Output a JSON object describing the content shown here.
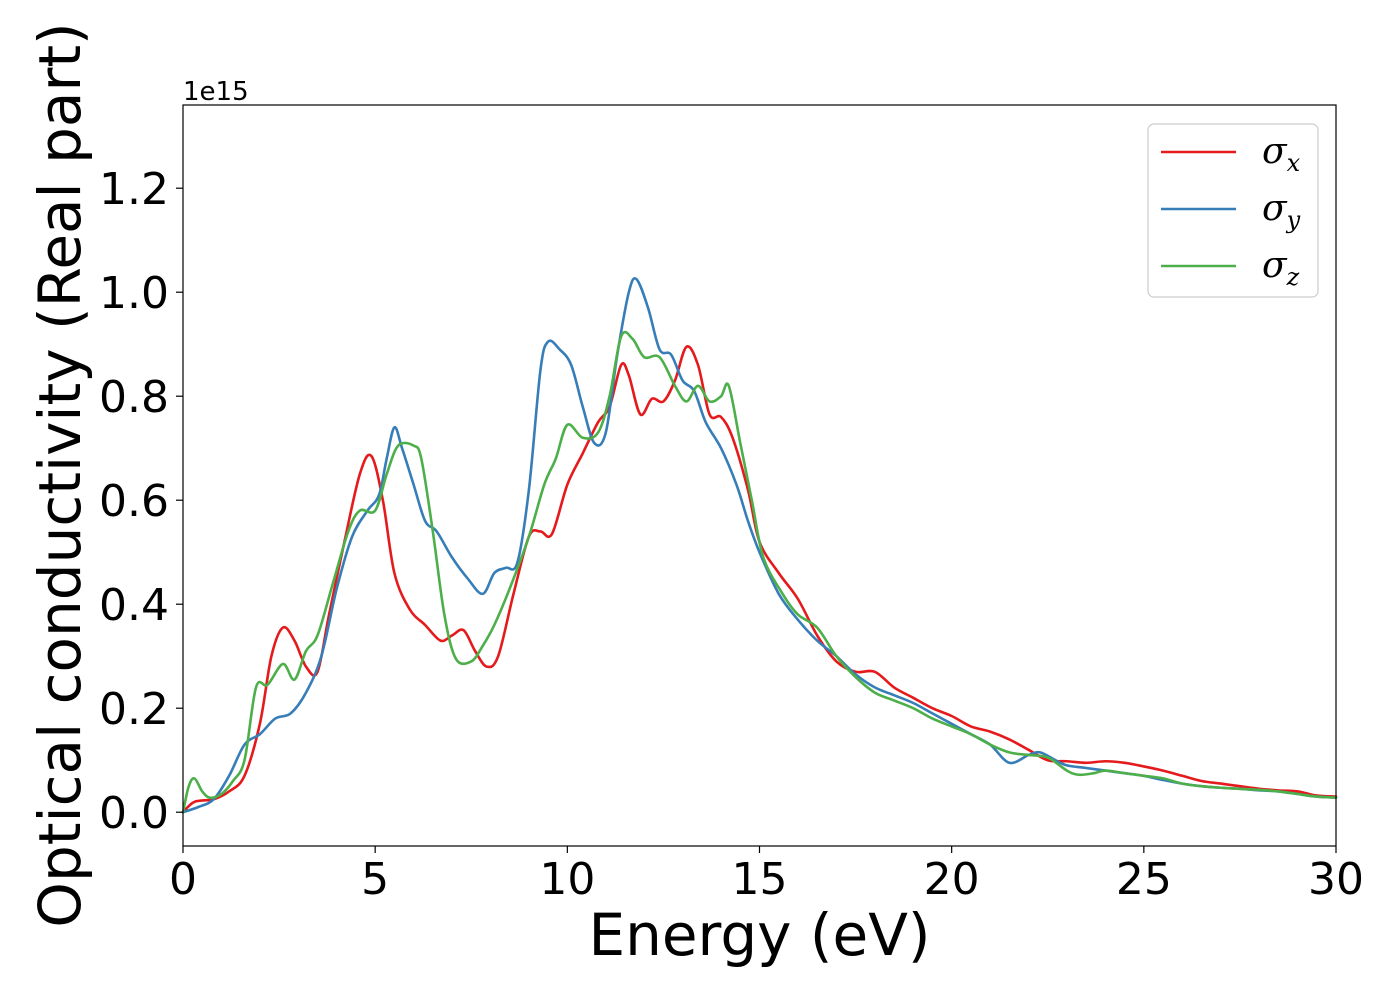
{
  "chart_data": {
    "type": "line",
    "title": "",
    "xlabel": "Energy (eV)",
    "ylabel": "Optical conductivity (Real part)",
    "y_offset_label": "1e15",
    "xlim": [
      0,
      30
    ],
    "ylim": [
      -0.065,
      1.36
    ],
    "x_ticks": [
      0,
      5,
      10,
      15,
      20,
      25,
      30
    ],
    "x_tick_labels": [
      "0",
      "5",
      "10",
      "15",
      "20",
      "25",
      "30"
    ],
    "y_ticks": [
      0.0,
      0.2,
      0.4,
      0.6,
      0.8,
      1.0,
      1.2
    ],
    "y_tick_labels": [
      "0.0",
      "0.2",
      "0.4",
      "0.6",
      "0.8",
      "1.0",
      "1.2"
    ],
    "grid": false,
    "legend_position": "top-right",
    "series": [
      {
        "name": "σx",
        "legend_symbol": "σ",
        "legend_subscript": "x",
        "color": "#e41a1c",
        "points": [
          [
            0,
            0
          ],
          [
            0.3,
            0.02
          ],
          [
            0.8,
            0.025
          ],
          [
            1.2,
            0.04
          ],
          [
            1.6,
            0.07
          ],
          [
            2.0,
            0.17
          ],
          [
            2.3,
            0.3
          ],
          [
            2.6,
            0.355
          ],
          [
            2.9,
            0.33
          ],
          [
            3.2,
            0.28
          ],
          [
            3.5,
            0.27
          ],
          [
            3.8,
            0.38
          ],
          [
            4.2,
            0.52
          ],
          [
            4.6,
            0.65
          ],
          [
            4.9,
            0.685
          ],
          [
            5.2,
            0.6
          ],
          [
            5.5,
            0.46
          ],
          [
            5.9,
            0.39
          ],
          [
            6.3,
            0.36
          ],
          [
            6.7,
            0.33
          ],
          [
            7.0,
            0.34
          ],
          [
            7.3,
            0.35
          ],
          [
            7.6,
            0.31
          ],
          [
            7.9,
            0.28
          ],
          [
            8.2,
            0.3
          ],
          [
            8.6,
            0.42
          ],
          [
            9.0,
            0.53
          ],
          [
            9.3,
            0.54
          ],
          [
            9.6,
            0.535
          ],
          [
            10.0,
            0.63
          ],
          [
            10.4,
            0.69
          ],
          [
            10.8,
            0.75
          ],
          [
            11.1,
            0.78
          ],
          [
            11.4,
            0.86
          ],
          [
            11.6,
            0.84
          ],
          [
            11.9,
            0.765
          ],
          [
            12.2,
            0.795
          ],
          [
            12.5,
            0.79
          ],
          [
            12.8,
            0.83
          ],
          [
            13.1,
            0.895
          ],
          [
            13.4,
            0.86
          ],
          [
            13.7,
            0.765
          ],
          [
            14.0,
            0.76
          ],
          [
            14.3,
            0.72
          ],
          [
            14.7,
            0.62
          ],
          [
            15.0,
            0.52
          ],
          [
            15.5,
            0.46
          ],
          [
            16.0,
            0.41
          ],
          [
            16.5,
            0.34
          ],
          [
            17.0,
            0.29
          ],
          [
            17.5,
            0.27
          ],
          [
            18.0,
            0.27
          ],
          [
            18.5,
            0.24
          ],
          [
            19.0,
            0.22
          ],
          [
            19.5,
            0.2
          ],
          [
            20.0,
            0.185
          ],
          [
            20.5,
            0.165
          ],
          [
            21.0,
            0.155
          ],
          [
            21.5,
            0.14
          ],
          [
            22.0,
            0.12
          ],
          [
            22.5,
            0.1
          ],
          [
            23.0,
            0.098
          ],
          [
            23.5,
            0.095
          ],
          [
            24.0,
            0.098
          ],
          [
            24.5,
            0.095
          ],
          [
            25.0,
            0.088
          ],
          [
            25.5,
            0.08
          ],
          [
            26.0,
            0.07
          ],
          [
            26.5,
            0.06
          ],
          [
            27.0,
            0.055
          ],
          [
            27.5,
            0.05
          ],
          [
            28.0,
            0.045
          ],
          [
            28.5,
            0.042
          ],
          [
            29.0,
            0.04
          ],
          [
            29.5,
            0.032
          ],
          [
            30.0,
            0.03
          ]
        ]
      },
      {
        "name": "σy",
        "legend_symbol": "σ",
        "legend_subscript": "y",
        "color": "#377eb8",
        "points": [
          [
            0,
            0
          ],
          [
            0.4,
            0.01
          ],
          [
            0.8,
            0.025
          ],
          [
            1.2,
            0.07
          ],
          [
            1.6,
            0.13
          ],
          [
            2.0,
            0.15
          ],
          [
            2.4,
            0.18
          ],
          [
            2.8,
            0.19
          ],
          [
            3.2,
            0.23
          ],
          [
            3.6,
            0.3
          ],
          [
            4.0,
            0.43
          ],
          [
            4.4,
            0.53
          ],
          [
            4.8,
            0.58
          ],
          [
            5.1,
            0.61
          ],
          [
            5.3,
            0.68
          ],
          [
            5.5,
            0.74
          ],
          [
            5.7,
            0.7
          ],
          [
            6.0,
            0.63
          ],
          [
            6.3,
            0.56
          ],
          [
            6.6,
            0.54
          ],
          [
            7.0,
            0.49
          ],
          [
            7.4,
            0.45
          ],
          [
            7.8,
            0.42
          ],
          [
            8.1,
            0.46
          ],
          [
            8.4,
            0.47
          ],
          [
            8.7,
            0.48
          ],
          [
            9.0,
            0.62
          ],
          [
            9.3,
            0.85
          ],
          [
            9.5,
            0.905
          ],
          [
            9.8,
            0.89
          ],
          [
            10.1,
            0.86
          ],
          [
            10.4,
            0.78
          ],
          [
            10.7,
            0.71
          ],
          [
            11.0,
            0.73
          ],
          [
            11.3,
            0.88
          ],
          [
            11.6,
            1.0
          ],
          [
            11.8,
            1.025
          ],
          [
            12.1,
            0.97
          ],
          [
            12.4,
            0.89
          ],
          [
            12.7,
            0.88
          ],
          [
            13.0,
            0.83
          ],
          [
            13.3,
            0.81
          ],
          [
            13.6,
            0.75
          ],
          [
            14.0,
            0.7
          ],
          [
            14.4,
            0.63
          ],
          [
            14.7,
            0.56
          ],
          [
            15.0,
            0.5
          ],
          [
            15.5,
            0.42
          ],
          [
            16.0,
            0.37
          ],
          [
            16.5,
            0.33
          ],
          [
            17.0,
            0.3
          ],
          [
            17.5,
            0.265
          ],
          [
            18.0,
            0.24
          ],
          [
            18.5,
            0.225
          ],
          [
            19.0,
            0.21
          ],
          [
            19.5,
            0.19
          ],
          [
            20.0,
            0.17
          ],
          [
            20.5,
            0.15
          ],
          [
            21.0,
            0.13
          ],
          [
            21.5,
            0.095
          ],
          [
            22.0,
            0.11
          ],
          [
            22.3,
            0.115
          ],
          [
            22.7,
            0.1
          ],
          [
            23.0,
            0.09
          ],
          [
            23.5,
            0.085
          ],
          [
            24.0,
            0.08
          ],
          [
            24.5,
            0.075
          ],
          [
            25.0,
            0.07
          ],
          [
            25.5,
            0.062
          ],
          [
            26.0,
            0.055
          ],
          [
            26.5,
            0.05
          ],
          [
            27.0,
            0.047
          ],
          [
            27.5,
            0.045
          ],
          [
            28.0,
            0.042
          ],
          [
            28.5,
            0.04
          ],
          [
            29.0,
            0.035
          ],
          [
            29.5,
            0.03
          ],
          [
            30.0,
            0.028
          ]
        ]
      },
      {
        "name": "σz",
        "legend_symbol": "σ",
        "legend_subscript": "z",
        "color": "#4daf4a",
        "points": [
          [
            0,
            0
          ],
          [
            0.15,
            0.05
          ],
          [
            0.3,
            0.065
          ],
          [
            0.5,
            0.04
          ],
          [
            0.7,
            0.028
          ],
          [
            1.0,
            0.035
          ],
          [
            1.3,
            0.06
          ],
          [
            1.6,
            0.1
          ],
          [
            1.9,
            0.24
          ],
          [
            2.2,
            0.245
          ],
          [
            2.6,
            0.285
          ],
          [
            2.9,
            0.255
          ],
          [
            3.2,
            0.31
          ],
          [
            3.5,
            0.34
          ],
          [
            3.9,
            0.44
          ],
          [
            4.3,
            0.54
          ],
          [
            4.6,
            0.58
          ],
          [
            5.0,
            0.58
          ],
          [
            5.3,
            0.65
          ],
          [
            5.6,
            0.705
          ],
          [
            6.0,
            0.705
          ],
          [
            6.2,
            0.68
          ],
          [
            6.5,
            0.54
          ],
          [
            6.8,
            0.38
          ],
          [
            7.1,
            0.295
          ],
          [
            7.5,
            0.29
          ],
          [
            7.8,
            0.32
          ],
          [
            8.1,
            0.36
          ],
          [
            8.5,
            0.43
          ],
          [
            9.0,
            0.53
          ],
          [
            9.4,
            0.63
          ],
          [
            9.7,
            0.68
          ],
          [
            10.0,
            0.745
          ],
          [
            10.4,
            0.72
          ],
          [
            10.8,
            0.73
          ],
          [
            11.1,
            0.8
          ],
          [
            11.4,
            0.915
          ],
          [
            11.7,
            0.91
          ],
          [
            12.0,
            0.875
          ],
          [
            12.4,
            0.875
          ],
          [
            12.8,
            0.82
          ],
          [
            13.1,
            0.79
          ],
          [
            13.4,
            0.82
          ],
          [
            13.7,
            0.79
          ],
          [
            14.0,
            0.8
          ],
          [
            14.2,
            0.82
          ],
          [
            14.5,
            0.71
          ],
          [
            14.8,
            0.6
          ],
          [
            15.1,
            0.49
          ],
          [
            15.6,
            0.42
          ],
          [
            16.0,
            0.38
          ],
          [
            16.5,
            0.355
          ],
          [
            17.0,
            0.3
          ],
          [
            17.5,
            0.26
          ],
          [
            18.0,
            0.23
          ],
          [
            18.5,
            0.215
          ],
          [
            19.0,
            0.2
          ],
          [
            19.5,
            0.18
          ],
          [
            20.0,
            0.165
          ],
          [
            20.5,
            0.15
          ],
          [
            21.0,
            0.13
          ],
          [
            21.5,
            0.115
          ],
          [
            22.0,
            0.11
          ],
          [
            22.5,
            0.105
          ],
          [
            23.0,
            0.08
          ],
          [
            23.3,
            0.072
          ],
          [
            23.7,
            0.075
          ],
          [
            24.0,
            0.08
          ],
          [
            24.5,
            0.075
          ],
          [
            25.0,
            0.07
          ],
          [
            25.5,
            0.065
          ],
          [
            26.0,
            0.055
          ],
          [
            26.5,
            0.05
          ],
          [
            27.0,
            0.047
          ],
          [
            27.5,
            0.045
          ],
          [
            28.0,
            0.043
          ],
          [
            28.5,
            0.04
          ],
          [
            29.0,
            0.035
          ],
          [
            29.5,
            0.03
          ],
          [
            30.0,
            0.028
          ]
        ]
      }
    ]
  }
}
